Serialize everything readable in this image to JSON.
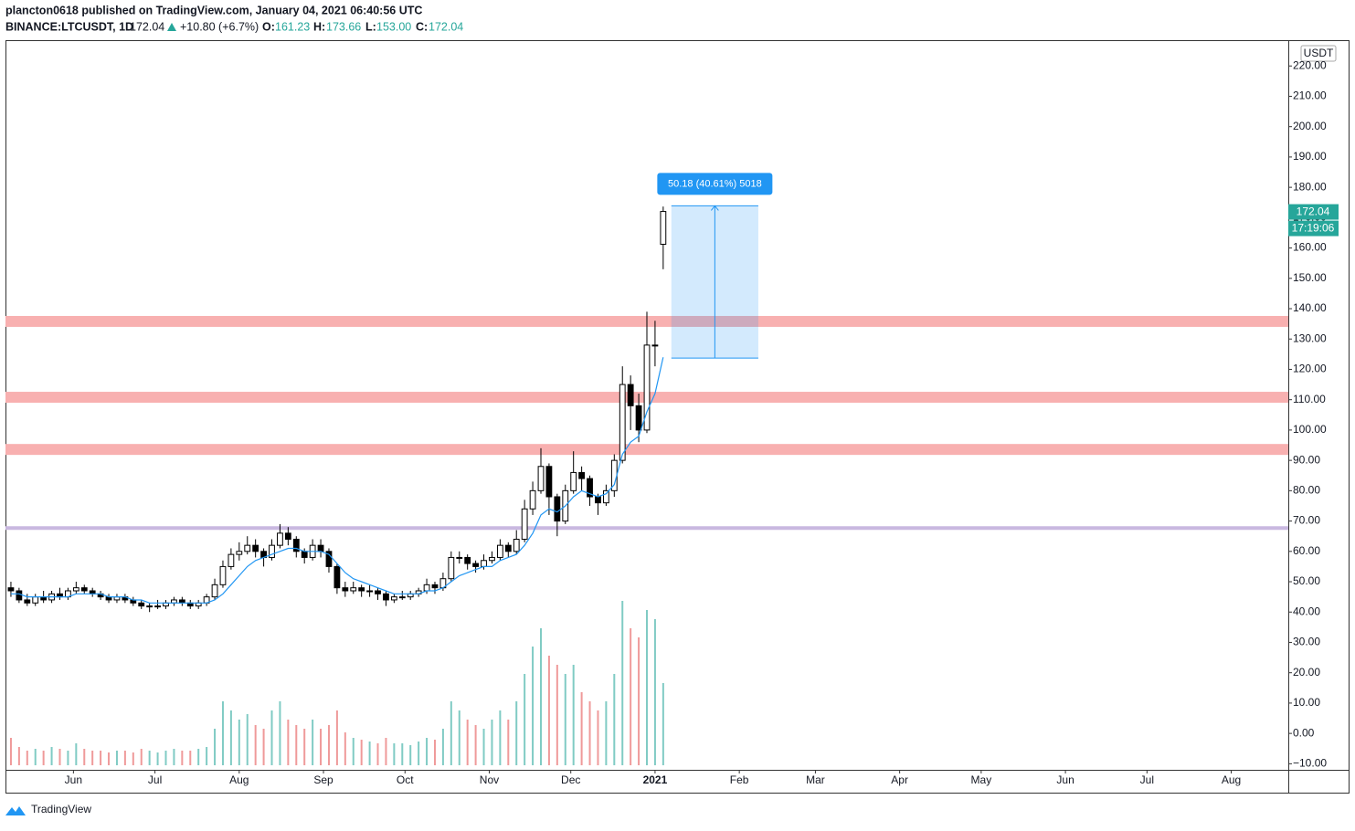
{
  "header": {
    "publisher": "plancton0618 published on TradingView.com, January 04, 2021 06:40:56 UTC",
    "symbol": "BINANCE:LTCUSDT, 1D",
    "change": "+10.80 (+6.7%)",
    "ohlc_labels": [
      "O:",
      "H:",
      "L:",
      "C:"
    ],
    "last_ohlc_labels": [
      "161.23",
      "173.66",
      "153.00",
      "172.04"
    ]
  },
  "footer": {
    "brand": "TradingView"
  },
  "chart_data": {
    "type": "candlestick",
    "currency": "USDT",
    "countdown": "17:19:06",
    "xlim": [
      0,
      472
    ],
    "ylim": [
      -12,
      228.5
    ],
    "vlim": [
      0,
      100
    ],
    "xticks": [
      {
        "value": 25,
        "label": "Jun"
      },
      {
        "value": 55,
        "label": "Jul"
      },
      {
        "value": 86,
        "label": "Aug"
      },
      {
        "value": 117,
        "label": "Sep"
      },
      {
        "value": 147,
        "label": "Oct"
      },
      {
        "value": 178,
        "label": "Nov"
      },
      {
        "value": 208,
        "label": "Dec"
      },
      {
        "value": 239,
        "label": "2021"
      },
      {
        "value": 270,
        "label": "Feb"
      },
      {
        "value": 298,
        "label": "Mar"
      },
      {
        "value": 329,
        "label": "Apr"
      },
      {
        "value": 359,
        "label": "May"
      },
      {
        "value": 390,
        "label": "Jun"
      },
      {
        "value": 420,
        "label": "Jul"
      },
      {
        "value": 451,
        "label": "Aug"
      }
    ],
    "yticks": [
      {
        "value": -10,
        "label": "−10.00"
      },
      {
        "value": 0,
        "label": "0.00"
      },
      {
        "value": 10,
        "label": "10.00"
      },
      {
        "value": 20,
        "label": "20.00"
      },
      {
        "value": 30,
        "label": "30.00"
      },
      {
        "value": 40,
        "label": "40.00"
      },
      {
        "value": 50,
        "label": "50.00"
      },
      {
        "value": 60,
        "label": "60.00"
      },
      {
        "value": 70,
        "label": "70.00"
      },
      {
        "value": 80,
        "label": "80.00"
      },
      {
        "value": 90,
        "label": "90.00"
      },
      {
        "value": 100,
        "label": "100.00"
      },
      {
        "value": 110,
        "label": "110.00"
      },
      {
        "value": 120,
        "label": "120.00"
      },
      {
        "value": 130,
        "label": "130.00"
      },
      {
        "value": 140,
        "label": "140.00"
      },
      {
        "value": 150,
        "label": "150.00"
      },
      {
        "value": 160,
        "label": "160.00"
      },
      {
        "value": 170,
        "label": "170.00"
      },
      {
        "value": 180,
        "label": "180.00"
      },
      {
        "value": 190,
        "label": "190.00"
      },
      {
        "value": 200,
        "label": "200.00"
      },
      {
        "value": 210,
        "label": "210.00"
      },
      {
        "value": 220,
        "label": "220.00"
      }
    ],
    "grid": false,
    "up_color": "#ffffff",
    "down_color": "#000000",
    "wick_color": "#000000",
    "volume_up_color": "#80cbc4",
    "volume_down_color": "#ef9a9a",
    "ma_color": "#2196f3",
    "x": [
      2,
      5,
      8,
      11,
      14,
      17,
      20,
      23,
      26,
      29,
      32,
      35,
      38,
      41,
      44,
      47,
      50,
      53,
      56,
      59,
      62,
      65,
      68,
      71,
      74,
      77,
      80,
      83,
      86,
      89,
      92,
      95,
      98,
      101,
      104,
      107,
      110,
      113,
      116,
      119,
      122,
      125,
      128,
      131,
      134,
      137,
      140,
      143,
      146,
      149,
      152,
      155,
      158,
      161,
      164,
      167,
      170,
      173,
      176,
      179,
      182,
      185,
      188,
      191,
      194,
      197,
      200,
      203,
      206,
      209,
      212,
      215,
      218,
      221,
      224,
      227,
      230,
      233,
      236,
      239,
      242
    ],
    "ohlc": [
      [
        48,
        50,
        45,
        47
      ],
      [
        47,
        48,
        43,
        44
      ],
      [
        44,
        46,
        42,
        43
      ],
      [
        43,
        46,
        42,
        45
      ],
      [
        45,
        47,
        43,
        44
      ],
      [
        44,
        47,
        43,
        46
      ],
      [
        46,
        48,
        44,
        45
      ],
      [
        45,
        48,
        44,
        47
      ],
      [
        47,
        50,
        46,
        48
      ],
      [
        48,
        49,
        46,
        47
      ],
      [
        47,
        48,
        45,
        46
      ],
      [
        46,
        47,
        44,
        45
      ],
      [
        45,
        46,
        43,
        44
      ],
      [
        44,
        46,
        43,
        45
      ],
      [
        45,
        46,
        43,
        44
      ],
      [
        44,
        45,
        42,
        43
      ],
      [
        43,
        44,
        41,
        42
      ],
      [
        42,
        43,
        40,
        42
      ],
      [
        42,
        44,
        41,
        42
      ],
      [
        42,
        44,
        41,
        43
      ],
      [
        43,
        45,
        42,
        44
      ],
      [
        44,
        45,
        42,
        43
      ],
      [
        43,
        44,
        41,
        42
      ],
      [
        42,
        44,
        41,
        43
      ],
      [
        43,
        46,
        42,
        45
      ],
      [
        45,
        51,
        44,
        49
      ],
      [
        49,
        57,
        48,
        55
      ],
      [
        55,
        61,
        54,
        59
      ],
      [
        59,
        63,
        57,
        60
      ],
      [
        60,
        65,
        59,
        62
      ],
      [
        62,
        64,
        58,
        60
      ],
      [
        60,
        61,
        55,
        58
      ],
      [
        58,
        64,
        57,
        62
      ],
      [
        62,
        69,
        61,
        66
      ],
      [
        66,
        68,
        62,
        64
      ],
      [
        64,
        65,
        58,
        60
      ],
      [
        60,
        61,
        56,
        58
      ],
      [
        58,
        64,
        57,
        62
      ],
      [
        62,
        64,
        58,
        60
      ],
      [
        60,
        61,
        53,
        55
      ],
      [
        55,
        56,
        46,
        48
      ],
      [
        48,
        50,
        45,
        47
      ],
      [
        47,
        50,
        46,
        48
      ],
      [
        48,
        49,
        45,
        47
      ],
      [
        47,
        49,
        45,
        47
      ],
      [
        47,
        48,
        44,
        46
      ],
      [
        46,
        47,
        42,
        44
      ],
      [
        44,
        46,
        43,
        45
      ],
      [
        45,
        47,
        44,
        45
      ],
      [
        45,
        47,
        44,
        46
      ],
      [
        46,
        48,
        45,
        47
      ],
      [
        47,
        51,
        46,
        49
      ],
      [
        49,
        50,
        46,
        48
      ],
      [
        48,
        53,
        47,
        51
      ],
      [
        51,
        60,
        50,
        58
      ],
      [
        58,
        60,
        56,
        58
      ],
      [
        58,
        59,
        54,
        56
      ],
      [
        56,
        57,
        53,
        55
      ],
      [
        55,
        59,
        54,
        57
      ],
      [
        57,
        60,
        56,
        58
      ],
      [
        58,
        64,
        57,
        62
      ],
      [
        62,
        63,
        58,
        60
      ],
      [
        60,
        67,
        59,
        64
      ],
      [
        64,
        77,
        63,
        74
      ],
      [
        74,
        83,
        72,
        80
      ],
      [
        80,
        94,
        79,
        88
      ],
      [
        88,
        89,
        72,
        78
      ],
      [
        78,
        79,
        65,
        70
      ],
      [
        70,
        82,
        69,
        80
      ],
      [
        80,
        93,
        79,
        86
      ],
      [
        86,
        88,
        80,
        84
      ],
      [
        84,
        85,
        75,
        78
      ],
      [
        78,
        79,
        72,
        76
      ],
      [
        76,
        82,
        75,
        80
      ],
      [
        80,
        92,
        78,
        90
      ],
      [
        90,
        121,
        89,
        115
      ],
      [
        115,
        118,
        100,
        108
      ],
      [
        108,
        112,
        96,
        100
      ],
      [
        100,
        139,
        99,
        128
      ],
      [
        128,
        136,
        121,
        128
      ],
      [
        161.23,
        173.66,
        153,
        172.04
      ]
    ],
    "ma": [
      46,
      46,
      45,
      45,
      45,
      45,
      45,
      45,
      46,
      46,
      46,
      46,
      45,
      45,
      45,
      44,
      44,
      43,
      43,
      43,
      43,
      43,
      43,
      43,
      43,
      44,
      46,
      49,
      52,
      55,
      57,
      58,
      59,
      60,
      61,
      61,
      60,
      60,
      60,
      59,
      56,
      53,
      51,
      50,
      49,
      48,
      47,
      46,
      46,
      46,
      46,
      47,
      47,
      48,
      50,
      52,
      53,
      54,
      55,
      55,
      57,
      58,
      59,
      62,
      66,
      72,
      74,
      73,
      75,
      78,
      80,
      79,
      78,
      79,
      82,
      92,
      96,
      98,
      106,
      112,
      124
    ],
    "volume": [
      15,
      10,
      8,
      9,
      8,
      10,
      9,
      8,
      12,
      9,
      8,
      8,
      7,
      8,
      8,
      7,
      9,
      8,
      7,
      8,
      9,
      8,
      8,
      9,
      10,
      20,
      35,
      30,
      25,
      28,
      22,
      20,
      30,
      35,
      25,
      22,
      20,
      25,
      20,
      22,
      30,
      18,
      15,
      14,
      13,
      12,
      15,
      12,
      12,
      11,
      13,
      15,
      14,
      20,
      35,
      30,
      25,
      22,
      20,
      25,
      30,
      25,
      35,
      50,
      65,
      75,
      60,
      55,
      50,
      55,
      40,
      35,
      30,
      35,
      50,
      90,
      75,
      70,
      85,
      80,
      45
    ],
    "zones": [
      [
        134,
        137.6
      ],
      [
        109,
        112.6
      ],
      [
        91.8,
        95.4
      ]
    ],
    "zone_color": "#f8b0b0",
    "level": 67.7,
    "level_color": "#c9b8e0",
    "measure": {
      "x": [
        245,
        277
      ],
      "y": [
        123.7,
        173.9
      ],
      "label": "50.18 (40.61%) 5018",
      "color": "#2196f3"
    }
  }
}
